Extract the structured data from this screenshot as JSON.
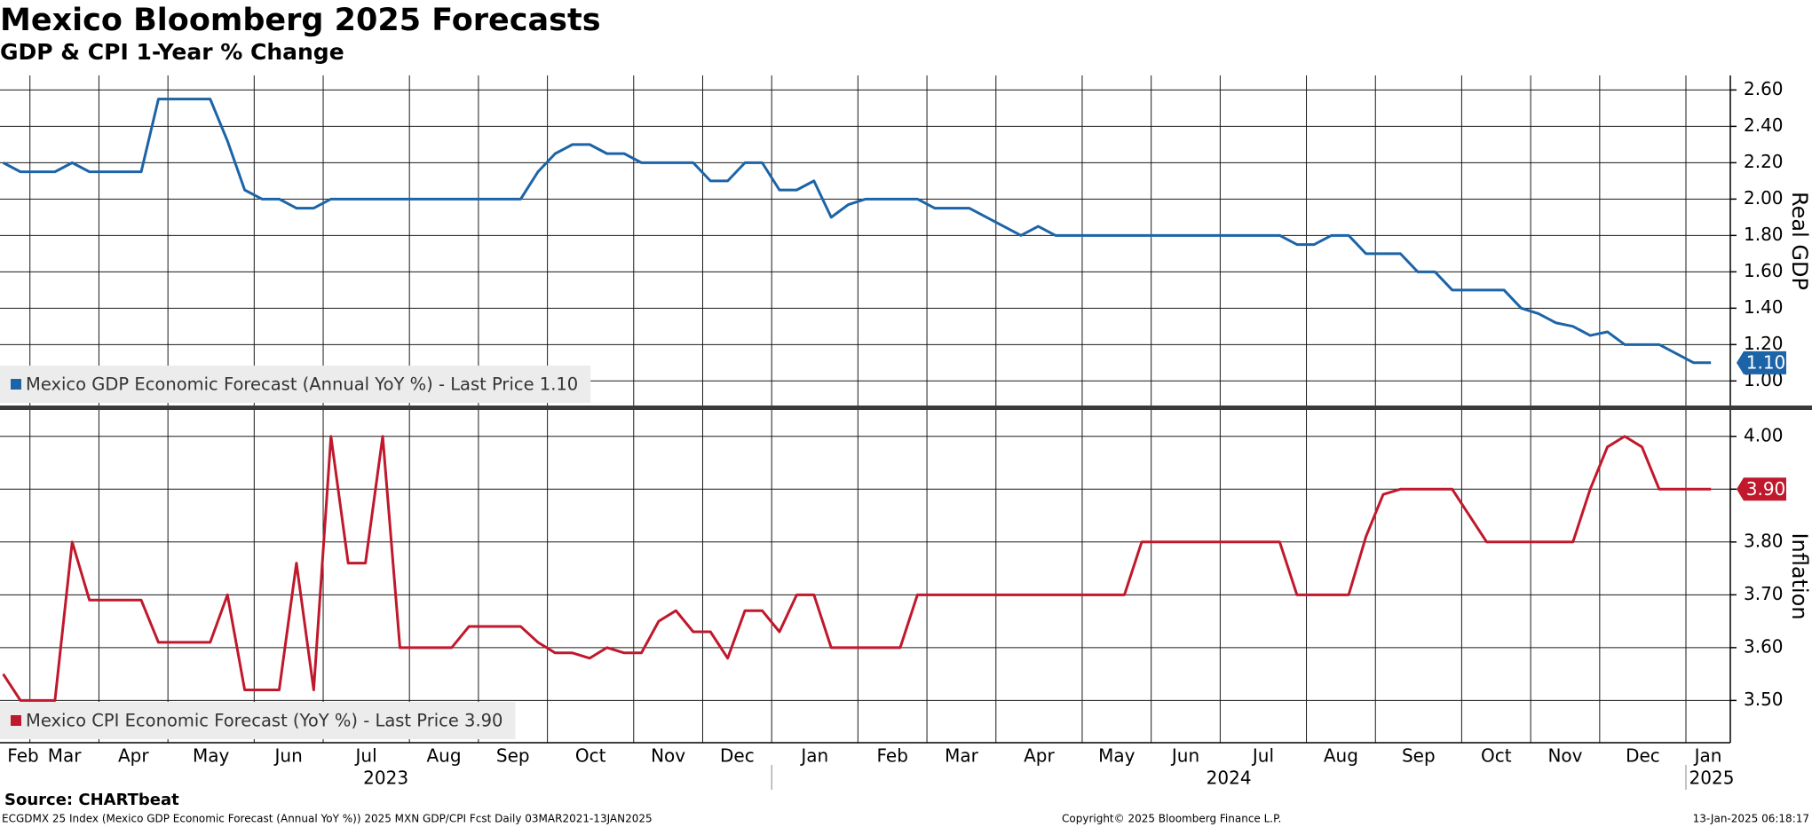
{
  "chart_data": {
    "type": "line",
    "title": "Mexico Bloomberg 2025 Forecasts",
    "subtitle": "GDP & CPI 1-Year % Change",
    "categories": [
      "Feb",
      null,
      "Mar",
      null,
      null,
      null,
      "Apr",
      null,
      null,
      null,
      "May",
      null,
      null,
      null,
      null,
      "Jun",
      null,
      null,
      null,
      "Jul",
      null,
      null,
      null,
      null,
      "Aug",
      null,
      null,
      null,
      "Sep",
      null,
      null,
      null,
      "Oct",
      null,
      null,
      null,
      null,
      "Nov",
      null,
      null,
      null,
      "Dec",
      null,
      null,
      null,
      "Jan",
      null,
      null,
      null,
      null,
      "Feb",
      null,
      null,
      null,
      "Mar",
      null,
      null,
      null,
      "Apr",
      null,
      null,
      null,
      null,
      "May",
      null,
      null,
      null,
      "Jun",
      null,
      null,
      null,
      "Jul",
      null,
      null,
      null,
      null,
      "Aug",
      null,
      null,
      null,
      "Sep",
      null,
      null,
      null,
      null,
      "Oct",
      null,
      null,
      null,
      "Nov",
      null,
      null,
      null,
      "Dec",
      null,
      null,
      null,
      null,
      "Jan",
      null
    ],
    "years": [
      "2023",
      "2024",
      "2025"
    ],
    "grid": true,
    "panels": [
      {
        "axis_label": "Real GDP",
        "ylim": [
          0.86,
          2.68
        ],
        "yticks": [
          {
            "value": 1.0,
            "label": "1.00"
          },
          {
            "value": 1.2,
            "label": "1.20"
          },
          {
            "value": 1.4,
            "label": "1.40"
          },
          {
            "value": 1.6,
            "label": "1.60"
          },
          {
            "value": 1.8,
            "label": "1.80"
          },
          {
            "value": 2.0,
            "label": "2.00"
          },
          {
            "value": 2.2,
            "label": "2.20"
          },
          {
            "value": 2.4,
            "label": "2.40"
          },
          {
            "value": 2.6,
            "label": "2.60"
          }
        ],
        "series": [
          {
            "name": "Mexico GDP Economic Forecast (Annual YoY %) - Last Price 1.10",
            "color": "#1c64a7",
            "values": [
              2.2,
              2.15,
              2.15,
              2.15,
              2.2,
              2.15,
              2.15,
              2.15,
              2.15,
              2.55,
              2.55,
              2.55,
              2.55,
              2.32,
              2.05,
              2.0,
              2.0,
              1.95,
              1.95,
              2.0,
              2.0,
              2.0,
              2.0,
              2.0,
              2.0,
              2.0,
              2.0,
              2.0,
              2.0,
              2.0,
              2.0,
              2.15,
              2.25,
              2.3,
              2.3,
              2.25,
              2.25,
              2.2,
              2.2,
              2.2,
              2.2,
              2.1,
              2.1,
              2.2,
              2.2,
              2.05,
              2.05,
              2.1,
              1.9,
              1.97,
              2.0,
              2.0,
              2.0,
              2.0,
              1.95,
              1.95,
              1.95,
              1.9,
              1.85,
              1.8,
              1.85,
              1.8,
              1.8,
              1.8,
              1.8,
              1.8,
              1.8,
              1.8,
              1.8,
              1.8,
              1.8,
              1.8,
              1.8,
              1.8,
              1.8,
              1.75,
              1.75,
              1.8,
              1.8,
              1.7,
              1.7,
              1.7,
              1.6,
              1.6,
              1.5,
              1.5,
              1.5,
              1.5,
              1.4,
              1.37,
              1.32,
              1.3,
              1.25,
              1.27,
              1.2,
              1.2,
              1.2,
              1.15,
              1.1,
              1.1
            ],
            "value_labels": [
              null,
              null,
              null,
              null,
              null,
              null,
              null,
              null,
              null,
              null,
              null,
              null,
              null,
              null,
              null,
              null,
              null,
              null,
              null,
              null,
              null,
              null,
              null,
              null,
              null,
              null,
              null,
              null,
              null,
              null,
              null,
              null,
              null,
              null,
              null,
              null,
              null,
              null,
              null,
              null,
              null,
              null,
              null,
              null,
              null,
              null,
              null,
              null,
              null,
              null,
              null,
              null,
              null,
              null,
              null,
              null,
              null,
              null,
              null,
              null,
              null,
              null,
              null,
              null,
              null,
              null,
              null,
              null,
              null,
              null,
              null,
              null,
              null,
              null,
              null,
              null,
              null,
              null,
              null,
              null,
              null,
              null,
              null,
              null,
              null,
              null,
              null,
              null,
              null,
              null,
              null,
              null,
              null,
              null,
              null,
              null,
              null,
              null,
              null,
              "1.10"
            ]
          }
        ]
      },
      {
        "axis_label": "Inflation",
        "ylim": [
          3.42,
          4.05
        ],
        "yticks": [
          {
            "value": 3.5,
            "label": "3.50"
          },
          {
            "value": 3.6,
            "label": "3.60"
          },
          {
            "value": 3.7,
            "label": "3.70"
          },
          {
            "value": 3.8,
            "label": "3.80"
          },
          {
            "value": 3.9,
            "label": "3.90"
          },
          {
            "value": 4.0,
            "label": "4.00"
          }
        ],
        "series": [
          {
            "name": "Mexico CPI Economic Forecast (YoY %) - Last Price 3.90",
            "color": "#c0182c",
            "values": [
              3.55,
              3.5,
              3.5,
              3.5,
              3.8,
              3.69,
              3.69,
              3.69,
              3.69,
              3.61,
              3.61,
              3.61,
              3.61,
              3.7,
              3.52,
              3.52,
              3.52,
              3.76,
              3.52,
              4.0,
              3.76,
              3.76,
              4.0,
              3.6,
              3.6,
              3.6,
              3.6,
              3.64,
              3.64,
              3.64,
              3.64,
              3.61,
              3.59,
              3.59,
              3.58,
              3.6,
              3.59,
              3.59,
              3.65,
              3.67,
              3.63,
              3.63,
              3.58,
              3.67,
              3.67,
              3.63,
              3.7,
              3.7,
              3.6,
              3.6,
              3.6,
              3.6,
              3.6,
              3.7,
              3.7,
              3.7,
              3.7,
              3.7,
              3.7,
              3.7,
              3.7,
              3.7,
              3.7,
              3.7,
              3.7,
              3.7,
              3.8,
              3.8,
              3.8,
              3.8,
              3.8,
              3.8,
              3.8,
              3.8,
              3.8,
              3.7,
              3.7,
              3.7,
              3.7,
              3.81,
              3.89,
              3.9,
              3.9,
              3.9,
              3.9,
              3.85,
              3.8,
              3.8,
              3.8,
              3.8,
              3.8,
              3.8,
              3.9,
              3.98,
              4.0,
              3.98,
              3.9,
              3.9,
              3.9,
              3.9
            ],
            "value_labels": [
              null,
              null,
              null,
              null,
              null,
              null,
              null,
              null,
              null,
              null,
              null,
              null,
              null,
              null,
              null,
              null,
              null,
              null,
              null,
              null,
              null,
              null,
              null,
              null,
              null,
              null,
              null,
              null,
              null,
              null,
              null,
              null,
              null,
              null,
              null,
              null,
              null,
              null,
              null,
              null,
              null,
              null,
              null,
              null,
              null,
              null,
              null,
              null,
              null,
              null,
              null,
              null,
              null,
              null,
              null,
              null,
              null,
              null,
              null,
              null,
              null,
              null,
              null,
              null,
              null,
              null,
              null,
              null,
              null,
              null,
              null,
              null,
              null,
              null,
              null,
              null,
              null,
              null,
              null,
              null,
              null,
              null,
              null,
              null,
              null,
              null,
              null,
              null,
              null,
              null,
              null,
              null,
              null,
              null,
              null,
              null,
              null,
              null,
              null,
              "3.90"
            ]
          }
        ]
      }
    ],
    "source": "Source: CHARTbeat",
    "footnote_left": "ECGDMX 25 Index (Mexico GDP Economic Forecast (Annual YoY %)) 2025 MXN GDP/CPI Fcst  Daily 03MAR2021-13JAN2025",
    "footnote_center": "Copyright© 2025 Bloomberg Finance L.P.",
    "footnote_right": "13-Jan-2025 06:18:17"
  }
}
